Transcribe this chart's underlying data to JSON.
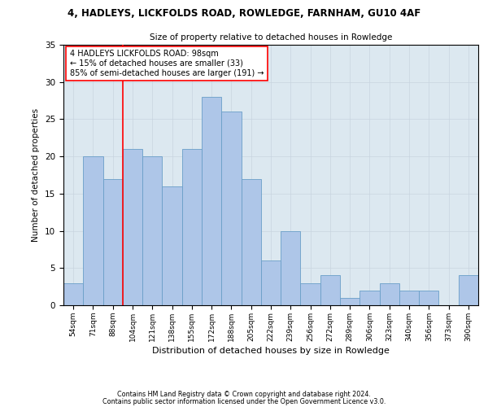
{
  "title": "4, HADLEYS, LICKFOLDS ROAD, ROWLEDGE, FARNHAM, GU10 4AF",
  "subtitle": "Size of property relative to detached houses in Rowledge",
  "xlabel": "Distribution of detached houses by size in Rowledge",
  "ylabel": "Number of detached properties",
  "categories": [
    "54sqm",
    "71sqm",
    "88sqm",
    "104sqm",
    "121sqm",
    "138sqm",
    "155sqm",
    "172sqm",
    "188sqm",
    "205sqm",
    "222sqm",
    "239sqm",
    "256sqm",
    "272sqm",
    "289sqm",
    "306sqm",
    "323sqm",
    "340sqm",
    "356sqm",
    "373sqm",
    "390sqm"
  ],
  "values": [
    3,
    20,
    17,
    21,
    20,
    16,
    21,
    28,
    26,
    17,
    6,
    10,
    3,
    4,
    1,
    2,
    3,
    2,
    2,
    0,
    4
  ],
  "bar_color": "#aec6e8",
  "bar_edge_color": "#6a9fc8",
  "vline_color": "red",
  "vline_pos": 2.5,
  "annotation_text": "4 HADLEYS LICKFOLDS ROAD: 98sqm\n← 15% of detached houses are smaller (33)\n85% of semi-detached houses are larger (191) →",
  "ylim": [
    0,
    35
  ],
  "yticks": [
    0,
    5,
    10,
    15,
    20,
    25,
    30,
    35
  ],
  "grid_color": "#c8d4e0",
  "bg_color": "#dce8f0",
  "footer1": "Contains HM Land Registry data © Crown copyright and database right 2024.",
  "footer2": "Contains public sector information licensed under the Open Government Licence v3.0."
}
